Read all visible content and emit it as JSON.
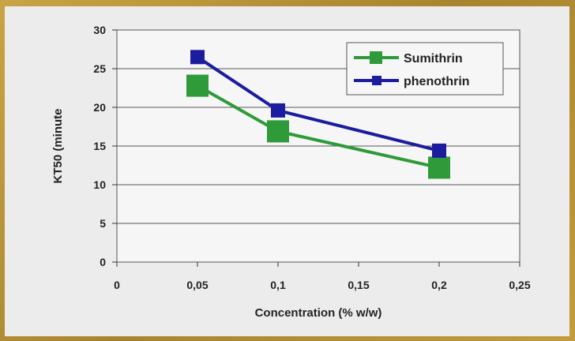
{
  "chart_data": {
    "type": "line",
    "xlabel": "Concentration (% w/w)",
    "ylabel": "KT50 (minute",
    "x_ticks": [
      "0",
      "0,05",
      "0,1",
      "0,15",
      "0,2",
      "0,25"
    ],
    "y_ticks": [
      "0",
      "5",
      "10",
      "15",
      "20",
      "25",
      "30"
    ],
    "xlim": [
      0,
      0.25
    ],
    "ylim": [
      0,
      30
    ],
    "grid": true,
    "legend_position": "top-right",
    "series": [
      {
        "name": "Sumithrin",
        "color": "#2f9a3a",
        "marker": "square-large",
        "x": [
          0.05,
          0.1,
          0.2
        ],
        "y": [
          22.8,
          16.9,
          12.2
        ]
      },
      {
        "name": "phenothrin",
        "color": "#1c1c9e",
        "marker": "square-small",
        "x": [
          0.05,
          0.1,
          0.2
        ],
        "y": [
          26.5,
          19.6,
          14.4
        ]
      }
    ]
  }
}
